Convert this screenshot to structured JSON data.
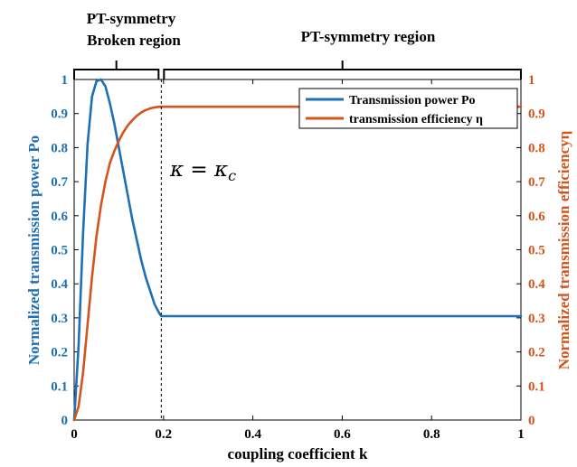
{
  "chart_data": {
    "type": "line",
    "xlabel": "coupling coefficient k",
    "ylabel_left": "Normalized transmission power Po",
    "ylabel_right": "Normalized transmission efficiencyη",
    "xlim": [
      0,
      1
    ],
    "ylim_left": [
      0,
      1
    ],
    "ylim_right": [
      0,
      1
    ],
    "x_ticks": [
      "0",
      "0.2",
      "0.4",
      "0.6",
      "0.8",
      "1"
    ],
    "y_ticks_left": [
      "0",
      "0.1",
      "0.2",
      "0.3",
      "0.4",
      "0.5",
      "0.6",
      "0.7",
      "0.8",
      "0.9",
      "1"
    ],
    "y_ticks_right": [
      "0",
      "0.1",
      "0.2",
      "0.3",
      "0.4",
      "0.5",
      "0.6",
      "0.7",
      "0.8",
      "0.9",
      "1"
    ],
    "grid": false,
    "legend_position": "top-right",
    "critical_k": 0.195,
    "critical_label": "κ = κc",
    "regions": {
      "broken_line1": "PT-symmetry",
      "broken_line2": "Broken region",
      "symmetry": "PT-symmetry region"
    },
    "series": [
      {
        "name": "Transmission power Po",
        "color": "#1f6fb5",
        "axis": "left",
        "x": [
          0,
          0.01,
          0.02,
          0.03,
          0.04,
          0.05,
          0.06,
          0.07,
          0.08,
          0.09,
          0.1,
          0.11,
          0.12,
          0.13,
          0.14,
          0.15,
          0.16,
          0.17,
          0.18,
          0.19,
          0.195,
          0.3,
          0.4,
          0.5,
          0.6,
          0.7,
          0.8,
          0.9,
          1.0
        ],
        "values": [
          0,
          0.22,
          0.55,
          0.81,
          0.95,
          0.995,
          1.0,
          0.98,
          0.93,
          0.87,
          0.8,
          0.73,
          0.66,
          0.59,
          0.53,
          0.47,
          0.42,
          0.38,
          0.34,
          0.315,
          0.305,
          0.305,
          0.305,
          0.305,
          0.305,
          0.305,
          0.305,
          0.305,
          0.305
        ]
      },
      {
        "name": "transmission efficiency η",
        "color": "#d5541c",
        "axis": "right",
        "x": [
          0,
          0.01,
          0.02,
          0.03,
          0.04,
          0.05,
          0.06,
          0.07,
          0.08,
          0.09,
          0.1,
          0.11,
          0.12,
          0.13,
          0.14,
          0.15,
          0.16,
          0.17,
          0.18,
          0.19,
          0.195,
          0.3,
          0.4,
          0.5,
          0.6,
          0.7,
          0.8,
          0.9,
          1.0
        ],
        "values": [
          0,
          0.04,
          0.14,
          0.28,
          0.42,
          0.54,
          0.63,
          0.7,
          0.755,
          0.79,
          0.82,
          0.845,
          0.865,
          0.88,
          0.893,
          0.903,
          0.91,
          0.915,
          0.918,
          0.92,
          0.92,
          0.92,
          0.92,
          0.92,
          0.92,
          0.92,
          0.92,
          0.92,
          0.92
        ]
      }
    ]
  }
}
